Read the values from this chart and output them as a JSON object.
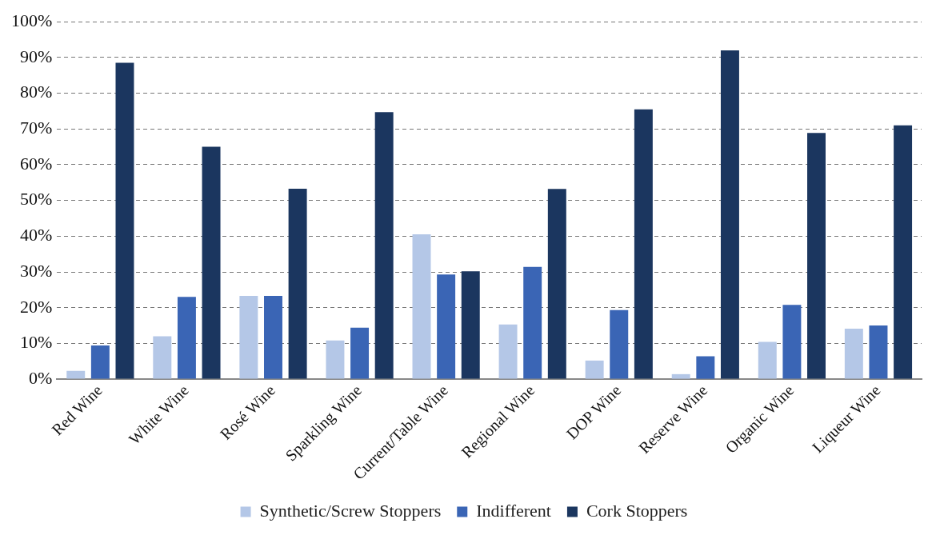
{
  "chart_data": {
    "type": "bar",
    "categories": [
      "Red Wine",
      "White Wine",
      "Rosé Wine",
      "Sparkling Wine",
      "Current/Table Wine",
      "Regional Wine",
      "DOP Wine",
      "Reserve Wine",
      "Organic Wine",
      "Liqueur Wine"
    ],
    "series": [
      {
        "name": "Synthetic/Screw Stoppers",
        "color": "#b4c7e7",
        "values": [
          2.3,
          12,
          23.3,
          10.8,
          40.5,
          15.3,
          5.2,
          1.4,
          10.4,
          14.1
        ]
      },
      {
        "name": "Indifferent",
        "color": "#3a65b5",
        "values": [
          9.4,
          23,
          23.3,
          14.4,
          29.3,
          31.4,
          19.3,
          6.4,
          20.8,
          15
        ]
      },
      {
        "name": "Cork Stoppers",
        "color": "#1b365f",
        "values": [
          88.5,
          65,
          53.3,
          74.7,
          30.2,
          53.2,
          75.5,
          92,
          68.9,
          71
        ]
      }
    ],
    "ylim": [
      0,
      100
    ],
    "yticks": [
      {
        "value": 0,
        "label": "0%"
      },
      {
        "value": 10,
        "label": "10%"
      },
      {
        "value": 20,
        "label": "20%"
      },
      {
        "value": 30,
        "label": "30%"
      },
      {
        "value": 40,
        "label": "40%"
      },
      {
        "value": 50,
        "label": "50%"
      },
      {
        "value": 60,
        "label": "60%"
      },
      {
        "value": 70,
        "label": "70%"
      },
      {
        "value": 80,
        "label": "80%"
      },
      {
        "value": 90,
        "label": "90%"
      },
      {
        "value": 100,
        "label": "100%"
      }
    ],
    "grid": "y",
    "legend": "bottom"
  }
}
